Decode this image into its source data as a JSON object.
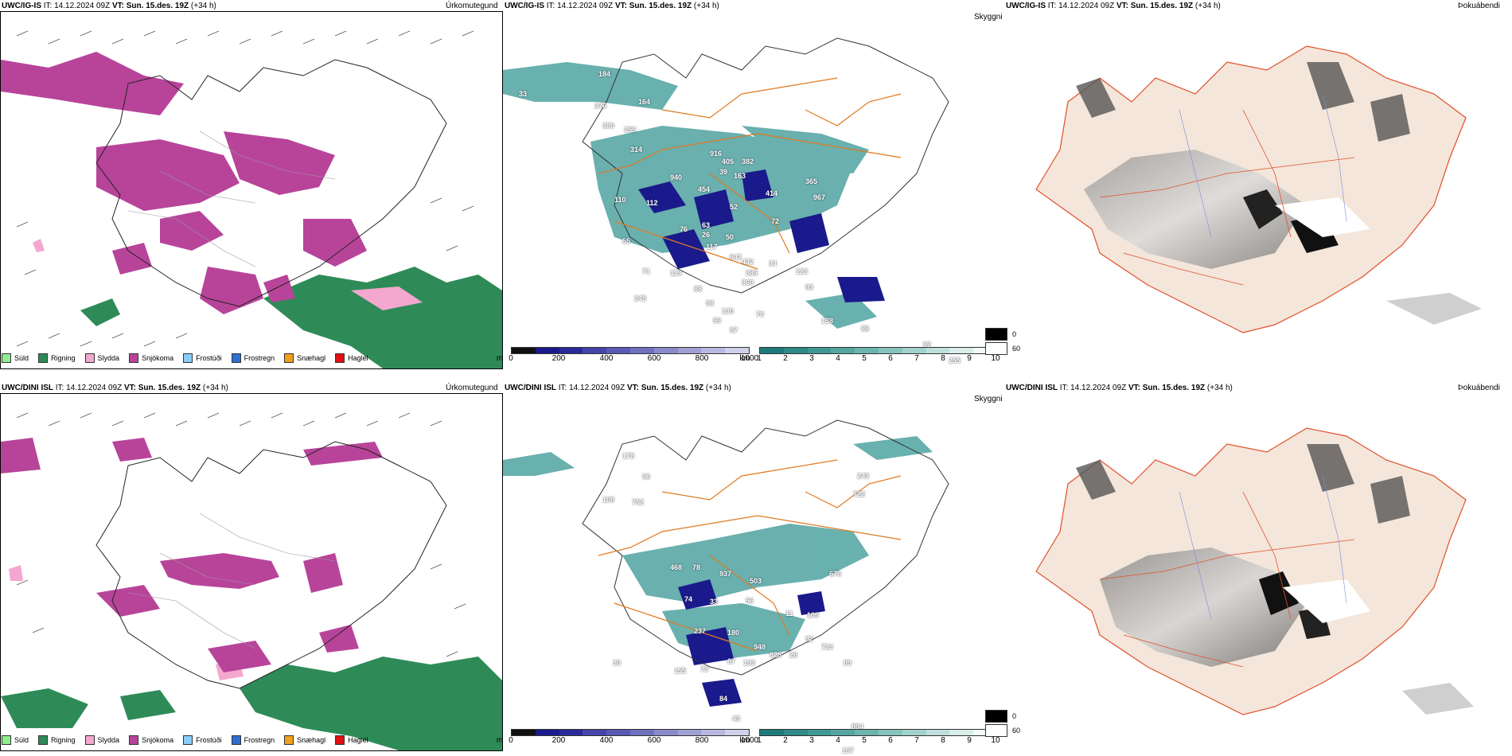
{
  "rows": [
    {
      "model": "UWC/IG-IS",
      "it": "IT: 14.12.2024 09Z",
      "vt_label": "VT:",
      "vt": "Sun. 15.des. 19Z",
      "lead": "(+34 h)",
      "heights": [
        "184",
        "376",
        "164",
        "380",
        "359",
        "314",
        "916",
        "405",
        "382",
        "39",
        "163",
        "940",
        "365",
        "454",
        "414",
        "967",
        "110",
        "112",
        "52",
        "76",
        "26",
        "63",
        "117",
        "50",
        "72",
        "55",
        "642",
        "432",
        "34",
        "71",
        "113",
        "389",
        "369",
        "88",
        "245",
        "123",
        "93",
        "98",
        "130",
        "99",
        "70",
        "57",
        "88",
        "138",
        "92",
        "255",
        "33"
      ]
    },
    {
      "model": "UWC/DINI ISL",
      "it": "IT: 14.12.2024 09Z",
      "vt_label": "VT:",
      "vt": "Sun. 15.des. 19Z",
      "lead": "(+34 h)",
      "heights": [
        "178",
        "96",
        "108",
        "752",
        "243",
        "722",
        "468",
        "78",
        "937",
        "503",
        "676",
        "74",
        "33",
        "56",
        "11",
        "109",
        "237",
        "180",
        "82",
        "948",
        "723",
        "825",
        "26",
        "30",
        "67",
        "199",
        "89",
        "73",
        "155",
        "84",
        "43",
        "894",
        "167"
      ]
    }
  ],
  "panel_titles": {
    "precip": "Úrkomutegund",
    "cloud": "Skyggni",
    "fog": "Þokuábendi"
  },
  "precip_legend": [
    {
      "label": "Súld",
      "color": "#90ee90"
    },
    {
      "label": "Rigning",
      "color": "#2e8b57"
    },
    {
      "label": "Slydda",
      "color": "#f4a7cf"
    },
    {
      "label": "Snjókoma",
      "color": "#b8449a"
    },
    {
      "label": "Frostúði",
      "color": "#87cefa"
    },
    {
      "label": "Frostregn",
      "color": "#2f6fd1"
    },
    {
      "label": "Snæhagl",
      "color": "#f0a020"
    },
    {
      "label": "Haglél",
      "color": "#e01010"
    }
  ],
  "height_scale": {
    "unit": "m",
    "ticks": [
      "0",
      "200",
      "400",
      "600",
      "800",
      "1000"
    ],
    "colors": [
      "#111111",
      "#1a1a8c",
      "#2a2a9a",
      "#4444aa",
      "#5a5ab4",
      "#7070bf",
      "#8a8aca",
      "#a0a0d4",
      "#b8b8de",
      "#d0d0ea"
    ]
  },
  "vis_scale": {
    "unit": "km",
    "ticks": [
      "1",
      "2",
      "3",
      "4",
      "5",
      "6",
      "7",
      "8",
      "9",
      "10"
    ],
    "colors": [
      "#1e7b7b",
      "#2e8a88",
      "#3f9894",
      "#55a6a1",
      "#6cb4ae",
      "#86c3bd",
      "#a2d2cc",
      "#bedfdb",
      "#d9ede9",
      "#f3faf8"
    ]
  },
  "fog_scale": [
    {
      "label": "0",
      "color": "#000000"
    },
    {
      "label": "60",
      "color": "#ffffff"
    }
  ],
  "colors": {
    "snow": "#b8449a",
    "rain": "#2e8b57",
    "sleet": "#f4a7cf",
    "teal": "#4fa3a0",
    "road": "#e07a20",
    "coast_fill": "#f4e6da",
    "fog_road": "#e0502a"
  }
}
